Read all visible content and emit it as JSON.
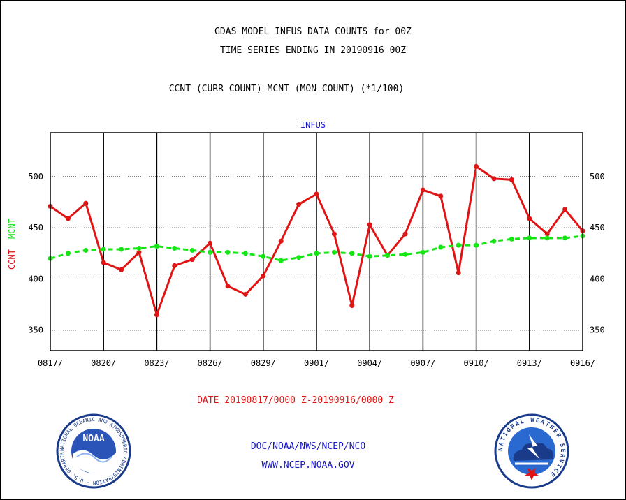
{
  "header": {
    "line1": "GDAS MODEL INFUS DATA COUNTS for 00Z",
    "line2": "TIME SERIES ENDING IN 20190916 00Z",
    "line3": "CCNT (CURR COUNT) MCNT (MON COUNT) (*1/100)"
  },
  "footer": {
    "date_range": "DATE 20190817/0000 Z-20190916/0000 Z",
    "org": "DOC/NOAA/NWS/NCEP/NCO",
    "url": "WWW.NCEP.NOAA.GOV"
  },
  "logos": {
    "noaa_text": "NOAA",
    "noaa_ring": "NATIONAL OCEANIC AND ATMOSPHERIC ADMINISTRATION · U.S. DEPARTMENT OF COMMERCE",
    "nws_ring": "NATIONAL WEATHER SERVICE"
  },
  "colors": {
    "ccnt": "#e01414",
    "mcnt": "#14e614",
    "title": "#1414c8",
    "frame": "#000000",
    "grid": "#000000"
  },
  "chart_data": {
    "type": "line",
    "title": "INFUS",
    "ylabel_parts": [
      "CCNT",
      "MCNT"
    ],
    "ylim": [
      330,
      543
    ],
    "yticks": [
      350,
      400,
      450,
      500
    ],
    "grid": true,
    "categories": [
      "0817",
      "0818",
      "0819",
      "0820",
      "0821",
      "0822",
      "0823",
      "0824",
      "0825",
      "0826",
      "0827",
      "0828",
      "0829",
      "0830",
      "0831",
      "0901",
      "0902",
      "0903",
      "0904",
      "0905",
      "0906",
      "0907",
      "0908",
      "0909",
      "0910",
      "0911",
      "0912",
      "0913",
      "0914",
      "0915",
      "0916"
    ],
    "xtick_labels": [
      "0817/",
      "0820/",
      "0823/",
      "0826/",
      "0829/",
      "0901/",
      "0904/",
      "0907/",
      "0910/",
      "0913/",
      "0916/"
    ],
    "xtick_every": 3,
    "series": [
      {
        "name": "CCNT",
        "style": "solid",
        "values": [
          471,
          459,
          474,
          416,
          409,
          426,
          365,
          413,
          419,
          435,
          393,
          385,
          403,
          437,
          473,
          483,
          444,
          374,
          453,
          423,
          444,
          487,
          481,
          406,
          510,
          498,
          497,
          459,
          444,
          468,
          447
        ]
      },
      {
        "name": "MCNT",
        "style": "dashed",
        "values": [
          420,
          425,
          428,
          429,
          429,
          430,
          432,
          430,
          428,
          426,
          426,
          425,
          422,
          418,
          421,
          425,
          426,
          425,
          422,
          423,
          424,
          426,
          431,
          433,
          433,
          437,
          439,
          440,
          440,
          440,
          442
        ]
      }
    ]
  }
}
